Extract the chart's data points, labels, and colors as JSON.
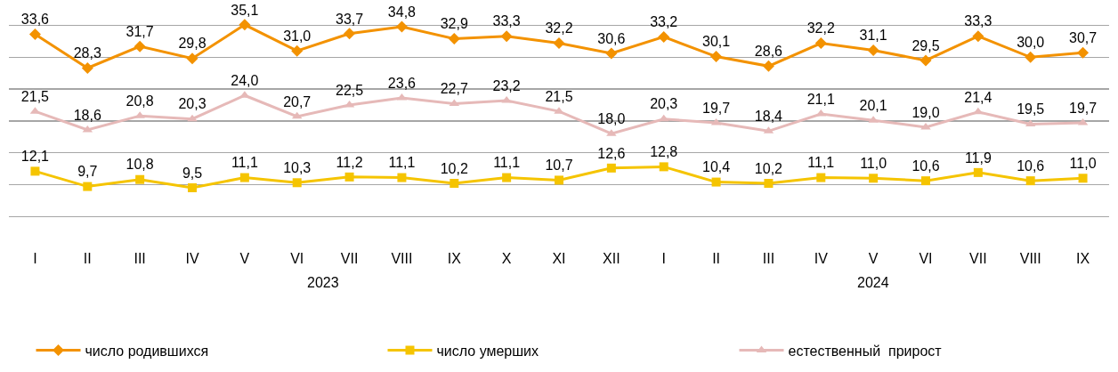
{
  "chart_data": {
    "type": "line",
    "categories": [
      "I",
      "II",
      "III",
      "IV",
      "V",
      "VI",
      "VII",
      "VIII",
      "IX",
      "X",
      "XI",
      "XII",
      "I",
      "II",
      "III",
      "IV",
      "V",
      "VI",
      "VII",
      "VIII",
      "IX"
    ],
    "series": [
      {
        "name": "число родившихся",
        "color": "#f39200",
        "marker": "diamond",
        "values": [
          33.6,
          28.3,
          31.7,
          29.8,
          35.1,
          31.0,
          33.7,
          34.8,
          32.9,
          33.3,
          32.2,
          30.6,
          33.2,
          30.1,
          28.6,
          32.2,
          31.1,
          29.5,
          33.3,
          30.0,
          30.7
        ],
        "value_labels": [
          "33,6",
          "28,3",
          "31,7",
          "29,8",
          "35,1",
          "31,0",
          "33,7",
          "34,8",
          "32,9",
          "33,3",
          "32,2",
          "30,6",
          "33,2",
          "30,1",
          "28,6",
          "32,2",
          "31,1",
          "29,5",
          "33,3",
          "30,0",
          "30,7"
        ]
      },
      {
        "name": "число умерших",
        "color": "#f5c400",
        "marker": "square",
        "values": [
          12.1,
          9.7,
          10.8,
          9.5,
          11.1,
          10.3,
          11.2,
          11.1,
          10.2,
          11.1,
          10.7,
          12.6,
          12.8,
          10.4,
          10.2,
          11.1,
          11.0,
          10.6,
          11.9,
          10.6,
          11.0
        ],
        "value_labels": [
          "12,1",
          "9,7",
          "10,8",
          "9,5",
          "11,1",
          "10,3",
          "11,2",
          "11,1",
          "10,2",
          "11,1",
          "10,7",
          "12,6",
          "12,8",
          "10,4",
          "10,2",
          "11,1",
          "11,0",
          "10,6",
          "11,9",
          "10,6",
          "11,0"
        ]
      },
      {
        "name": "естественный  прирост",
        "color": "#e6b9b8",
        "marker": "triangle",
        "values": [
          21.5,
          18.6,
          20.8,
          20.3,
          24.0,
          20.7,
          22.5,
          23.6,
          22.7,
          23.2,
          21.5,
          18.0,
          20.3,
          19.7,
          18.4,
          21.1,
          20.1,
          19.0,
          21.4,
          19.5,
          19.7
        ],
        "value_labels": [
          "21,5",
          "18,6",
          "20,8",
          "20,3",
          "24,0",
          "20,7",
          "22,5",
          "23,6",
          "22,7",
          "23,2",
          "21,5",
          "18,0",
          "20,3",
          "19,7",
          "18,4",
          "21,1",
          "20,1",
          "19,0",
          "21,4",
          "19,5",
          "19,7"
        ]
      }
    ],
    "annotations": [
      "2023",
      "2024"
    ],
    "grid": "y",
    "tick_labels": "x",
    "legend": "bottom",
    "line_style": "solid"
  }
}
